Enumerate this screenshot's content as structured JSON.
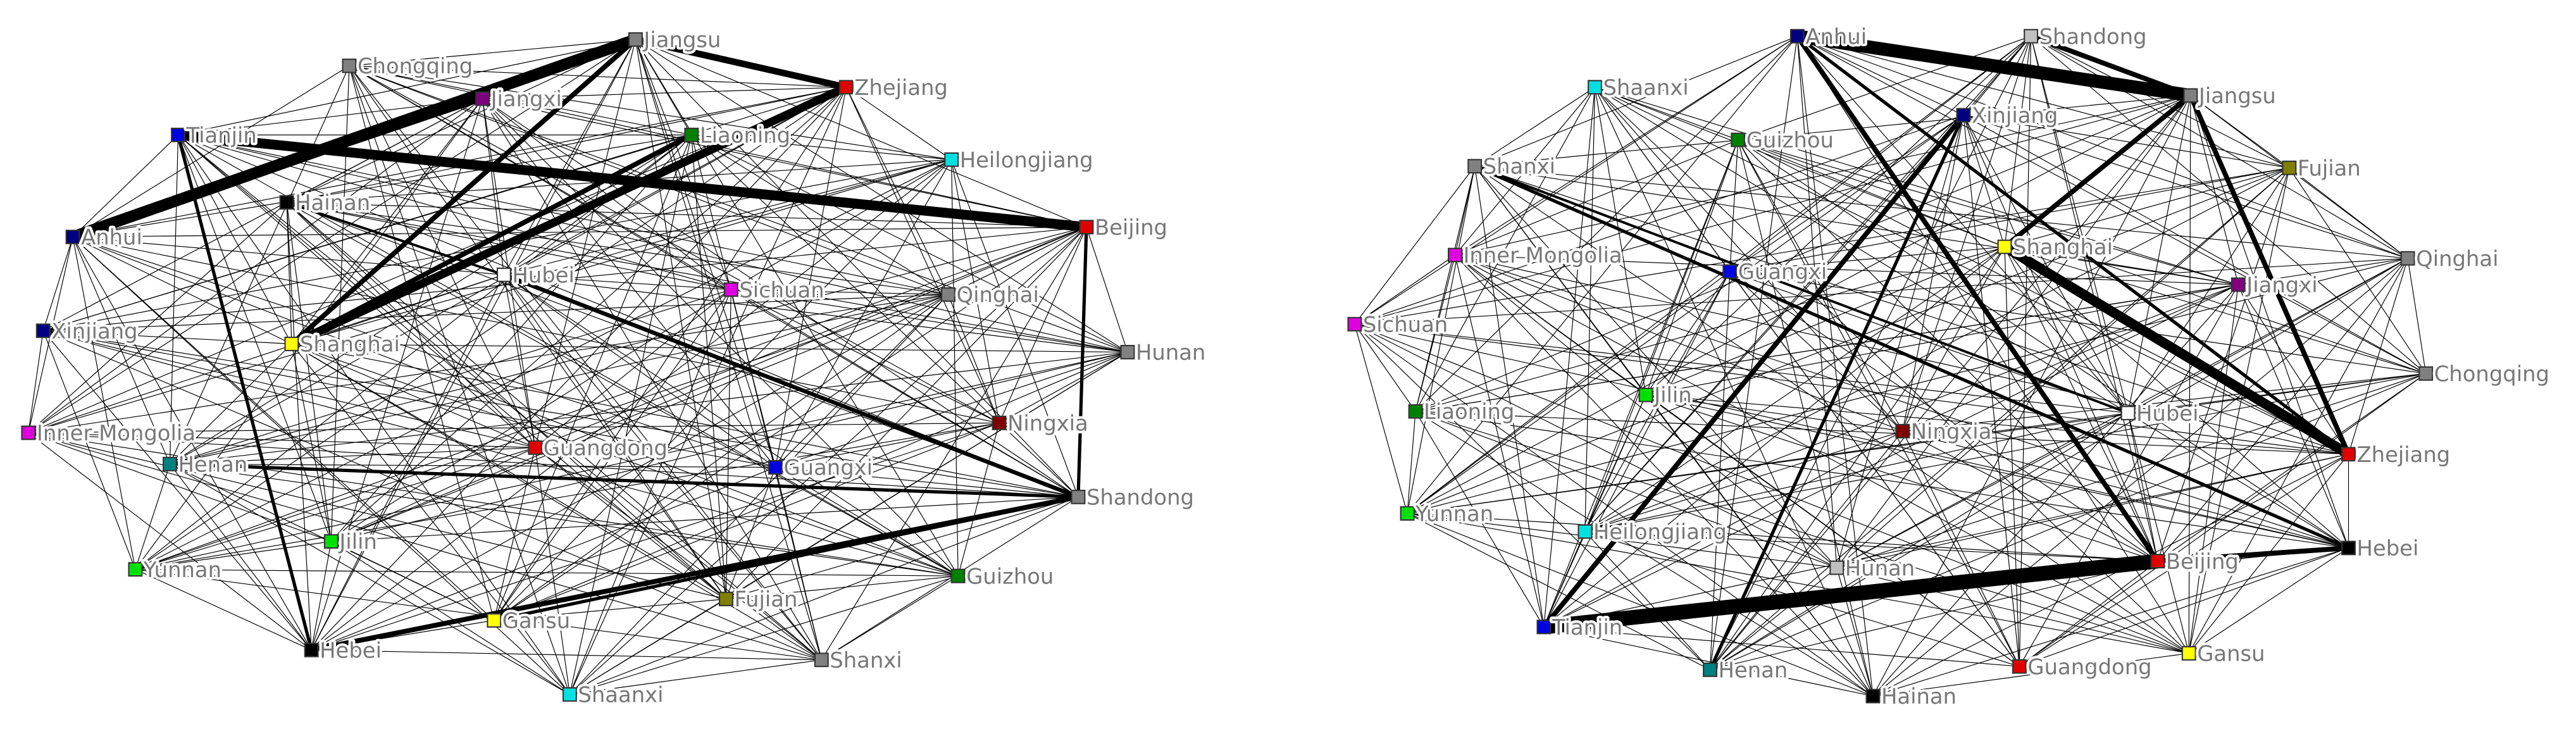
{
  "panels": [
    {
      "nodes": [
        {
          "label": "Jiangsu",
          "color": "#808080"
        },
        {
          "label": "Chongqing",
          "color": "#808080"
        },
        {
          "label": "Zhejiang",
          "color": "#e00000"
        },
        {
          "label": "Jiangxi",
          "color": "#800080"
        },
        {
          "label": "Tianjin",
          "color": "#0000e0"
        },
        {
          "label": "Liaoning",
          "color": "#008000"
        },
        {
          "label": "Heilongjiang",
          "color": "#00e0e0"
        },
        {
          "label": "Hainan",
          "color": "#000000"
        },
        {
          "label": "Beijing",
          "color": "#e00000"
        },
        {
          "label": "Anhui",
          "color": "#000080"
        },
        {
          "label": "Hubei",
          "color": "#ffffff"
        },
        {
          "label": "Sichuan",
          "color": "#e000e0"
        },
        {
          "label": "Qinghai",
          "color": "#808080"
        },
        {
          "label": "Xinjiang",
          "color": "#000080"
        },
        {
          "label": "Shanghai",
          "color": "#ffff00"
        },
        {
          "label": "Hunan",
          "color": "#808080"
        },
        {
          "label": "Ningxia",
          "color": "#800000"
        },
        {
          "label": "Inner Mongolia",
          "color": "#e000e0"
        },
        {
          "label": "Guangdong",
          "color": "#e00000"
        },
        {
          "label": "Henan",
          "color": "#008080"
        },
        {
          "label": "Guangxi",
          "color": "#0000e0"
        },
        {
          "label": "Shandong",
          "color": "#808080"
        },
        {
          "label": "Jilin",
          "color": "#00e000"
        },
        {
          "label": "Yunnan",
          "color": "#00e000"
        },
        {
          "label": "Guizhou",
          "color": "#008000"
        },
        {
          "label": "Fujian",
          "color": "#808000"
        },
        {
          "label": "Gansu",
          "color": "#ffff00"
        },
        {
          "label": "Hebei",
          "color": "#000000"
        },
        {
          "label": "Shanxi",
          "color": "#808080"
        },
        {
          "label": "Shaanxi",
          "color": "#00e0e0"
        }
      ]
    },
    {
      "nodes": [
        {
          "label": "Anhui",
          "color": "#000080"
        },
        {
          "label": "Shandong",
          "color": "#c0c0c0"
        },
        {
          "label": "Shaanxi",
          "color": "#00e0e0"
        },
        {
          "label": "Jiangsu",
          "color": "#808080"
        },
        {
          "label": "Xinjiang",
          "color": "#000080"
        },
        {
          "label": "Guizhou",
          "color": "#008000"
        },
        {
          "label": "Shanxi",
          "color": "#808080"
        },
        {
          "label": "Fujian",
          "color": "#808000"
        },
        {
          "label": "Shanghai",
          "color": "#ffff00"
        },
        {
          "label": "Inner Mongolia",
          "color": "#e000e0"
        },
        {
          "label": "Qinghai",
          "color": "#808080"
        },
        {
          "label": "Guangxi",
          "color": "#0000e0"
        },
        {
          "label": "Jiangxi",
          "color": "#800080"
        },
        {
          "label": "Sichuan",
          "color": "#e000e0"
        },
        {
          "label": "Chongqing",
          "color": "#808080"
        },
        {
          "label": "Jilin",
          "color": "#00e000"
        },
        {
          "label": "Liaoning",
          "color": "#008000"
        },
        {
          "label": "Hubei",
          "color": "#ffffff"
        },
        {
          "label": "Ningxia",
          "color": "#800000"
        },
        {
          "label": "Zhejiang",
          "color": "#e00000"
        },
        {
          "label": "Yunnan",
          "color": "#00e000"
        },
        {
          "label": "Heilongjiang",
          "color": "#00e0e0"
        },
        {
          "label": "Hebei",
          "color": "#000000"
        },
        {
          "label": "Hunan",
          "color": "#c0c0c0"
        },
        {
          "label": "Beijing",
          "color": "#e00000"
        },
        {
          "label": "Tianjin",
          "color": "#0000e0"
        },
        {
          "label": "Gansu",
          "color": "#ffff00"
        },
        {
          "label": "Henan",
          "color": "#008080"
        },
        {
          "label": "Guangdong",
          "color": "#e00000"
        },
        {
          "label": "Hainan",
          "color": "#000000"
        }
      ]
    }
  ]
}
